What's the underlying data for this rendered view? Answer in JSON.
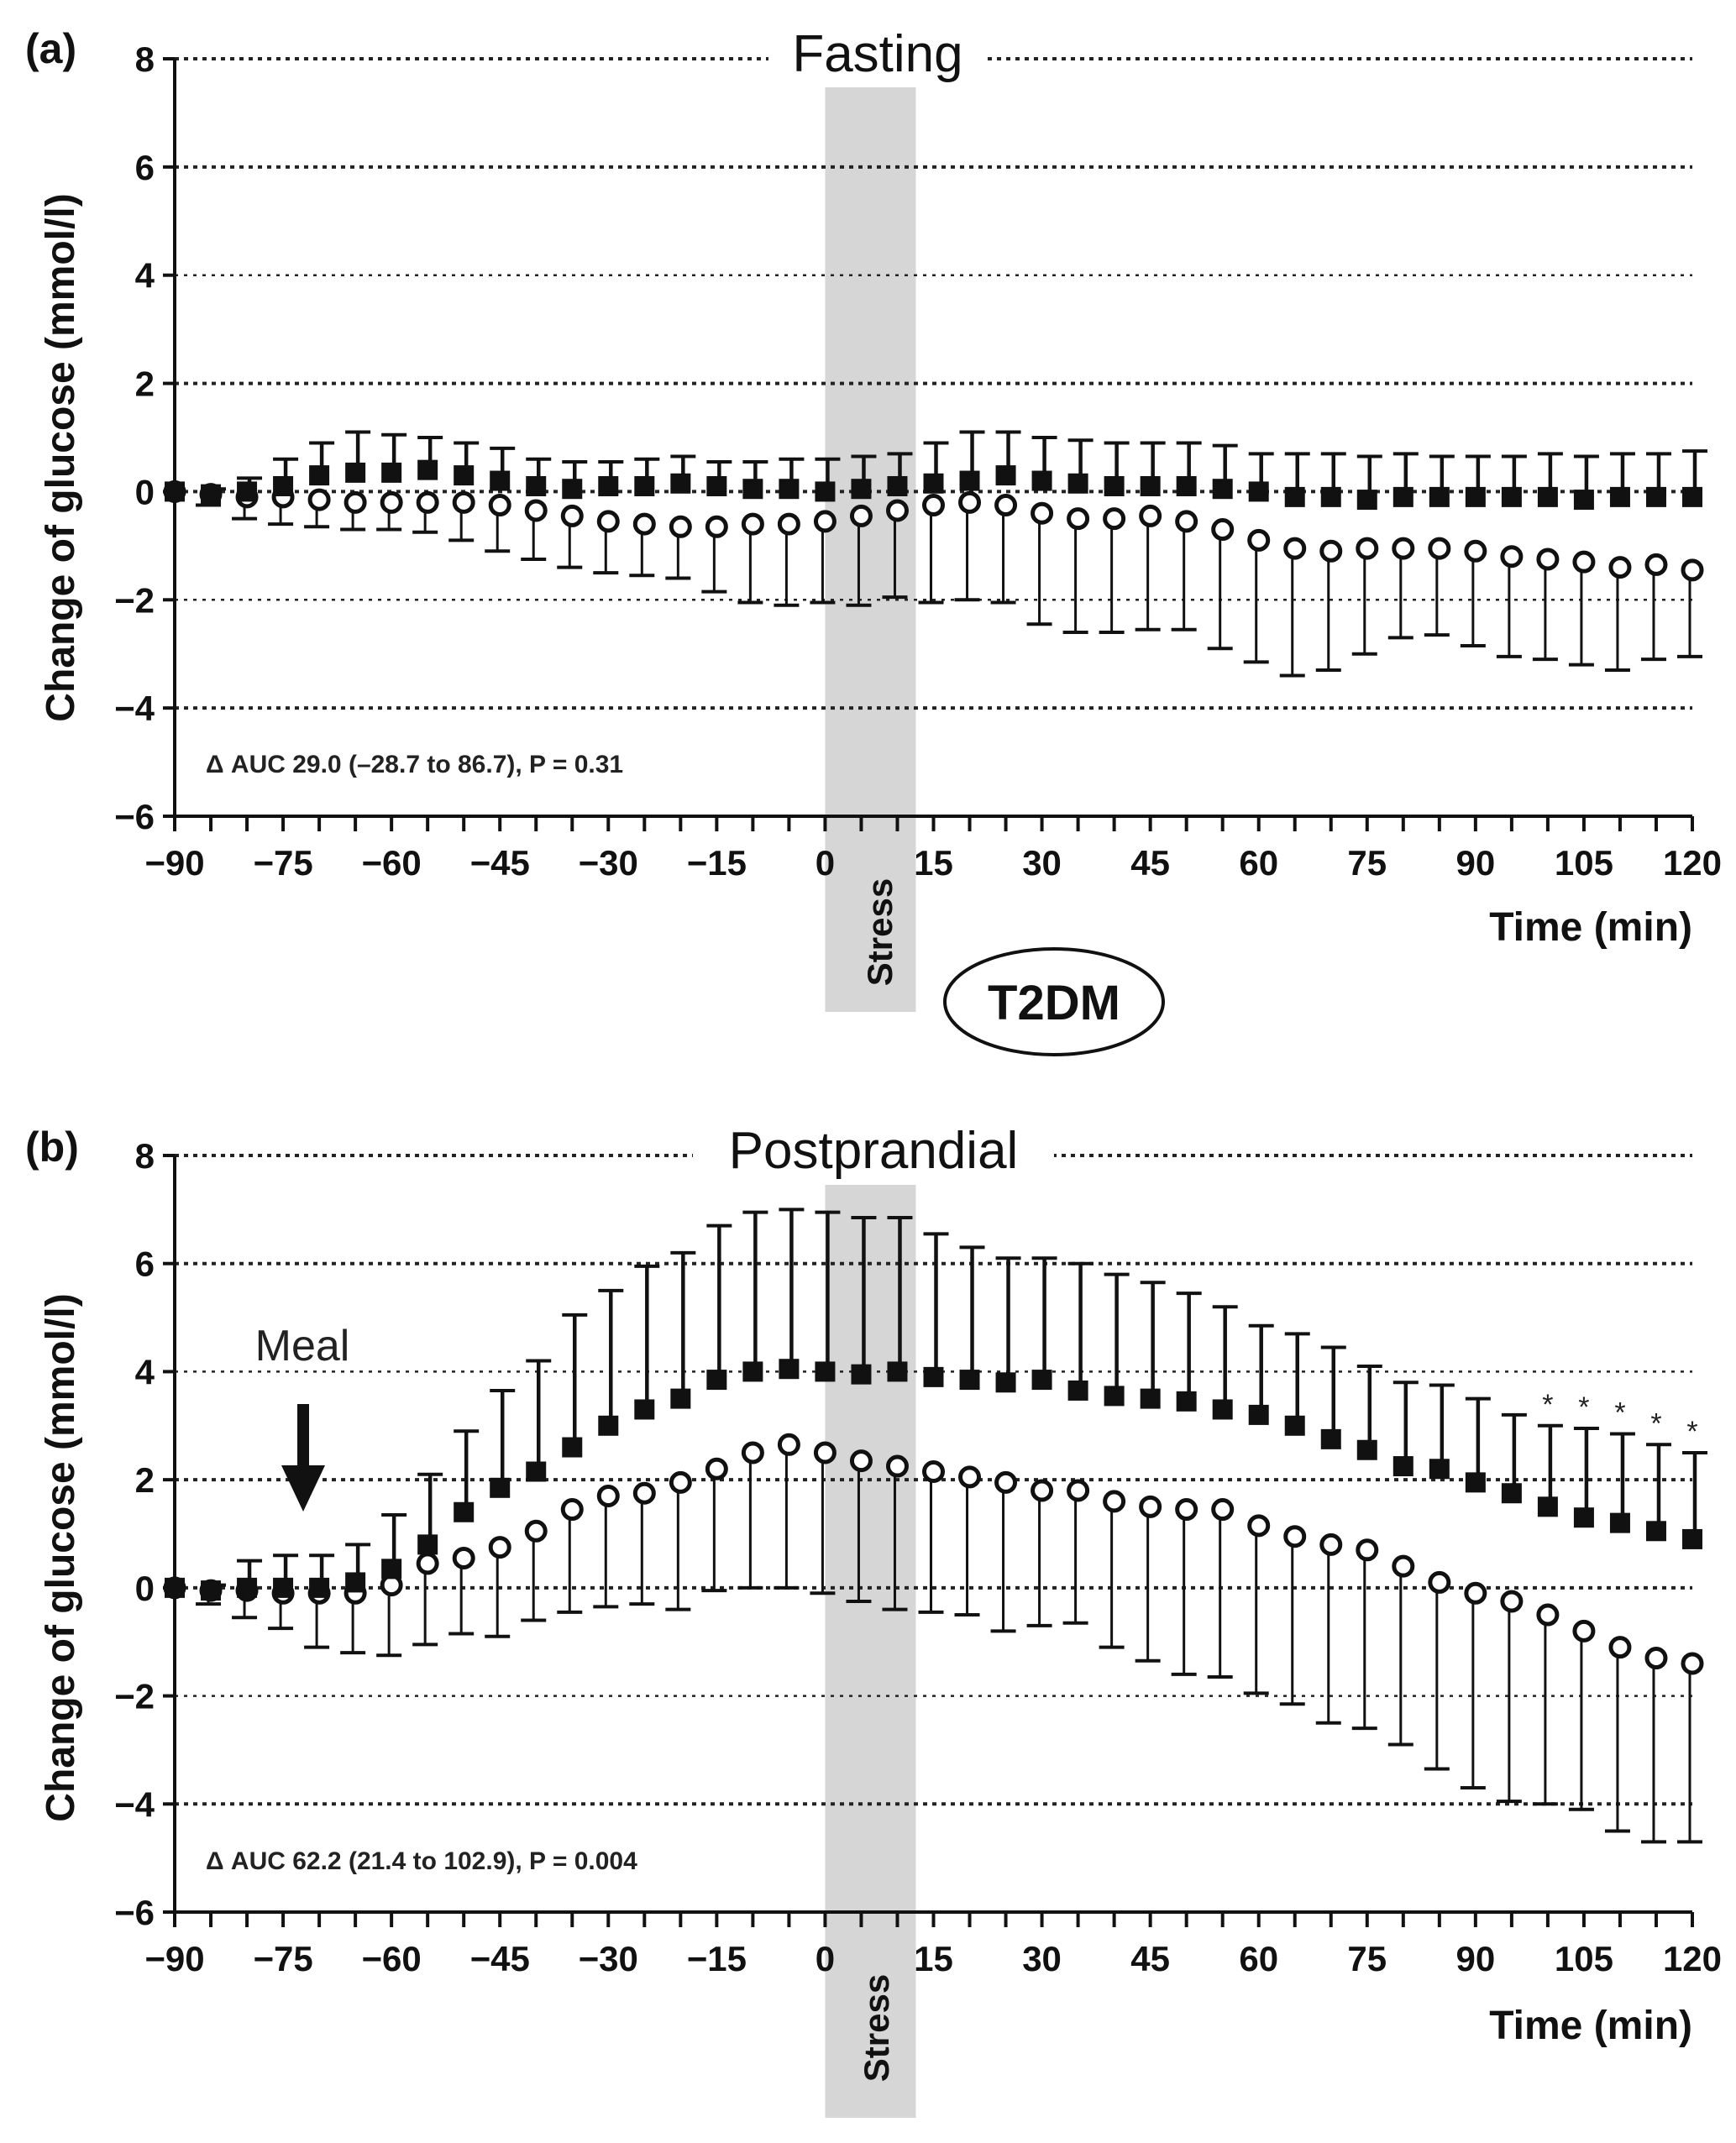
{
  "badge": "T2DM",
  "chart_data": [
    {
      "type": "line",
      "panel_label": "(a)",
      "title": "Fasting",
      "ylabel": "Change of glucose (mmol/l)",
      "xlabel": "Time (min)",
      "xlim": [
        -90,
        120
      ],
      "ylim": [
        -6,
        8
      ],
      "x_ticks": [
        -90,
        -75,
        -60,
        -45,
        -30,
        -15,
        0,
        15,
        30,
        45,
        60,
        75,
        90,
        105,
        120
      ],
      "y_ticks": [
        -6,
        -4,
        -2,
        0,
        2,
        4,
        6,
        8
      ],
      "grid": "horizontal dotted",
      "shaded_interval": {
        "x": [
          0,
          10
        ],
        "label": "Stress"
      },
      "annotation": "Δ AUC 29.0 (–28.7 to 86.7), P = 0.31",
      "x": [
        -90,
        -85,
        -80,
        -75,
        -70,
        -65,
        -60,
        -55,
        -50,
        -45,
        -40,
        -35,
        -30,
        -25,
        -20,
        -15,
        -10,
        -5,
        0,
        5,
        10,
        15,
        20,
        25,
        30,
        35,
        40,
        45,
        50,
        55,
        60,
        65,
        70,
        75,
        80,
        85,
        90,
        95,
        100,
        105,
        110,
        115,
        120
      ],
      "series": [
        {
          "name": "filled squares",
          "marker": "square-filled",
          "error_direction": "up",
          "values": [
            0,
            -0.05,
            0,
            0.1,
            0.3,
            0.35,
            0.35,
            0.4,
            0.3,
            0.2,
            0.1,
            0.05,
            0.1,
            0.1,
            0.15,
            0.1,
            0.05,
            0.05,
            0,
            0.05,
            0.1,
            0.15,
            0.2,
            0.3,
            0.2,
            0.15,
            0.1,
            0.1,
            0.1,
            0.05,
            0,
            -0.1,
            -0.1,
            -0.15,
            -0.1,
            -0.1,
            -0.1,
            -0.1,
            -0.1,
            -0.15,
            -0.1,
            -0.1,
            -0.1
          ],
          "errors": [
            0,
            0.1,
            0.25,
            0.5,
            0.6,
            0.75,
            0.7,
            0.6,
            0.6,
            0.6,
            0.5,
            0.5,
            0.45,
            0.5,
            0.5,
            0.45,
            0.5,
            0.55,
            0.6,
            0.6,
            0.6,
            0.75,
            0.9,
            0.8,
            0.8,
            0.8,
            0.8,
            0.8,
            0.8,
            0.8,
            0.7,
            0.8,
            0.8,
            0.8,
            0.8,
            0.75,
            0.75,
            0.75,
            0.8,
            0.8,
            0.8,
            0.8,
            0.85
          ]
        },
        {
          "name": "open circles",
          "marker": "circle-open",
          "error_direction": "down",
          "values": [
            0,
            -0.05,
            -0.1,
            -0.1,
            -0.15,
            -0.2,
            -0.2,
            -0.2,
            -0.2,
            -0.25,
            -0.35,
            -0.45,
            -0.55,
            -0.6,
            -0.65,
            -0.65,
            -0.6,
            -0.6,
            -0.55,
            -0.45,
            -0.35,
            -0.25,
            -0.2,
            -0.25,
            -0.4,
            -0.5,
            -0.5,
            -0.45,
            -0.55,
            -0.7,
            -0.9,
            -1.05,
            -1.1,
            -1.05,
            -1.05,
            -1.05,
            -1.1,
            -1.2,
            -1.25,
            -1.3,
            -1.4,
            -1.35,
            -1.45
          ],
          "errors": [
            0,
            0.2,
            0.4,
            0.5,
            0.5,
            0.5,
            0.5,
            0.55,
            0.7,
            0.85,
            0.9,
            0.95,
            0.95,
            0.95,
            0.95,
            1.2,
            1.45,
            1.5,
            1.5,
            1.65,
            1.6,
            1.8,
            1.8,
            1.8,
            2.05,
            2.1,
            2.1,
            2.1,
            2.0,
            2.2,
            2.25,
            2.35,
            2.2,
            1.95,
            1.65,
            1.6,
            1.75,
            1.85,
            1.85,
            1.9,
            1.9,
            1.75,
            1.6
          ]
        }
      ]
    },
    {
      "type": "line",
      "panel_label": "(b)",
      "title": "Postprandial",
      "ylabel": "Change of glucose (mmol/l)",
      "xlabel": "Time (min)",
      "xlim": [
        -90,
        120
      ],
      "ylim": [
        -6,
        8
      ],
      "x_ticks": [
        -90,
        -75,
        -60,
        -45,
        -30,
        -15,
        0,
        15,
        30,
        45,
        60,
        75,
        90,
        105,
        120
      ],
      "y_ticks": [
        -6,
        -4,
        -2,
        0,
        2,
        4,
        6,
        8
      ],
      "grid": "horizontal dotted",
      "shaded_interval": {
        "x": [
          0,
          10
        ],
        "label": "Stress"
      },
      "annotation": "Δ AUC 62.2 (21.4 to 102.9), P = 0.004",
      "event": {
        "label": "Meal",
        "x": -75
      },
      "significance_marker": "*",
      "significance_x": [
        100,
        105,
        110,
        115,
        120
      ],
      "x": [
        -90,
        -85,
        -80,
        -75,
        -70,
        -65,
        -60,
        -55,
        -50,
        -45,
        -40,
        -35,
        -30,
        -25,
        -20,
        -15,
        -10,
        -5,
        0,
        5,
        10,
        15,
        20,
        25,
        30,
        35,
        40,
        45,
        50,
        55,
        60,
        65,
        70,
        75,
        80,
        85,
        90,
        95,
        100,
        105,
        110,
        115,
        120
      ],
      "series": [
        {
          "name": "filled squares",
          "marker": "square-filled",
          "error_direction": "up",
          "values": [
            0,
            -0.05,
            0,
            0,
            0,
            0.1,
            0.35,
            0.8,
            1.4,
            1.85,
            2.15,
            2.6,
            3.0,
            3.3,
            3.5,
            3.85,
            4.0,
            4.05,
            4.0,
            3.95,
            4.0,
            3.9,
            3.85,
            3.8,
            3.85,
            3.65,
            3.55,
            3.5,
            3.45,
            3.3,
            3.2,
            3.0,
            2.75,
            2.55,
            2.25,
            2.2,
            1.95,
            1.75,
            1.5,
            1.3,
            1.2,
            1.05,
            0.9
          ],
          "errors": [
            0,
            0.1,
            0.5,
            0.6,
            0.6,
            0.7,
            1.0,
            1.3,
            1.5,
            1.8,
            2.05,
            2.45,
            2.5,
            2.65,
            2.7,
            2.85,
            2.95,
            2.95,
            2.95,
            2.9,
            2.85,
            2.65,
            2.45,
            2.3,
            2.25,
            2.35,
            2.25,
            2.15,
            2.0,
            1.9,
            1.65,
            1.7,
            1.7,
            1.55,
            1.55,
            1.55,
            1.55,
            1.45,
            1.5,
            1.65,
            1.65,
            1.6,
            1.6
          ]
        },
        {
          "name": "open circles",
          "marker": "circle-open",
          "error_direction": "down",
          "values": [
            0,
            -0.05,
            -0.05,
            -0.1,
            -0.1,
            -0.1,
            0.05,
            0.45,
            0.55,
            0.75,
            1.05,
            1.45,
            1.7,
            1.75,
            1.95,
            2.2,
            2.5,
            2.65,
            2.5,
            2.35,
            2.25,
            2.15,
            2.05,
            1.95,
            1.8,
            1.8,
            1.6,
            1.5,
            1.45,
            1.45,
            1.15,
            0.95,
            0.8,
            0.7,
            0.4,
            0.1,
            -0.1,
            -0.25,
            -0.5,
            -0.8,
            -1.1,
            -1.3,
            -1.4
          ],
          "errors": [
            0,
            0.25,
            0.5,
            0.65,
            1.0,
            1.1,
            1.3,
            1.5,
            1.4,
            1.65,
            1.65,
            1.9,
            2.05,
            2.05,
            2.35,
            2.25,
            2.5,
            2.65,
            2.6,
            2.6,
            2.65,
            2.6,
            2.55,
            2.75,
            2.5,
            2.45,
            2.7,
            2.85,
            3.05,
            3.1,
            3.1,
            3.1,
            3.3,
            3.3,
            3.3,
            3.45,
            3.6,
            3.7,
            3.5,
            3.3,
            3.4,
            3.4,
            3.3
          ]
        }
      ]
    }
  ]
}
